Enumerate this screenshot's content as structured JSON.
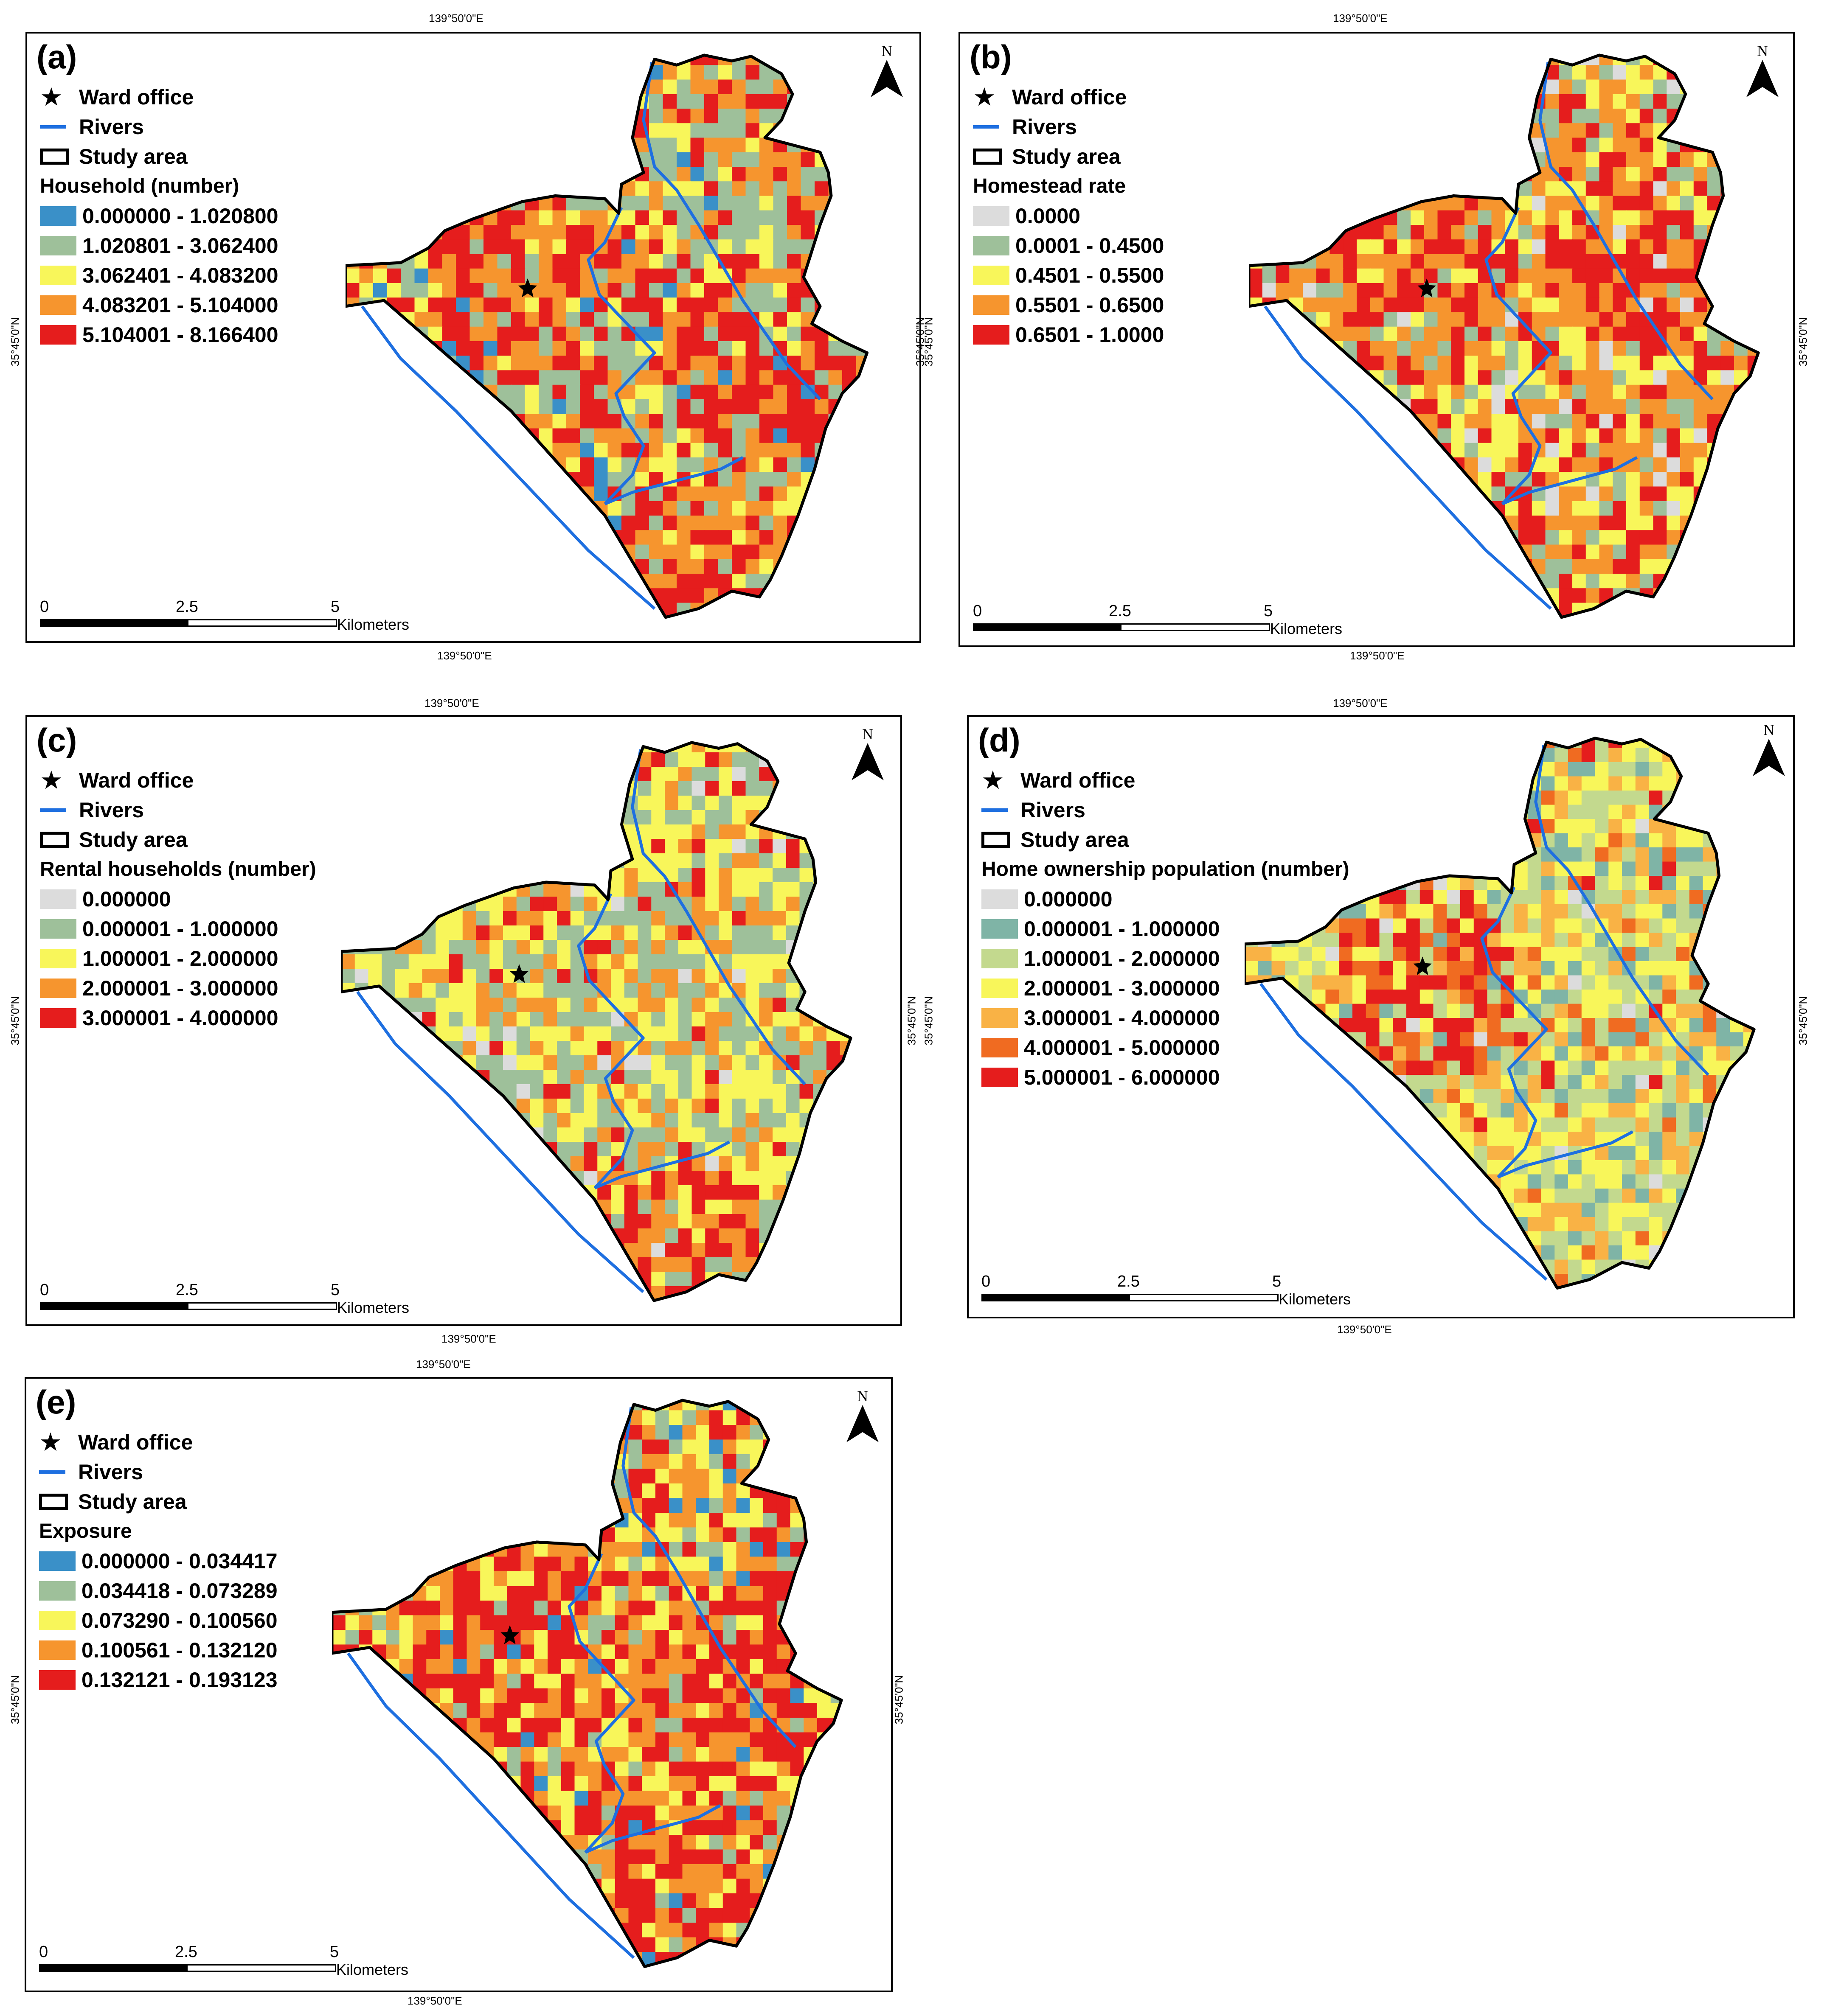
{
  "colors": {
    "river": "#1e6fe0",
    "outline": "#000000",
    "blue": "#3a90c8",
    "sage": "#9ec09a",
    "yellow": "#f8f65a",
    "orange": "#f6952e",
    "red": "#e51d1d",
    "gray": "#dcdcdc",
    "teal": "#7fb4a6",
    "lightgreen": "#c3d98e",
    "lightorange": "#f9b245",
    "darkorange": "#f06b21"
  },
  "common": {
    "coord_lon": "139°50'0\"E",
    "coord_lat": "35°45'0\"N",
    "north_letter": "N",
    "ward_office": "Ward office",
    "rivers": "Rivers",
    "study_area": "Study area",
    "scale_ticks": [
      "0",
      "2.5",
      "5"
    ],
    "scale_unit": "Kilometers"
  },
  "panels": [
    {
      "label": "(a)",
      "legend_title": "Household (number)",
      "classes": [
        {
          "range": "0.000000 - 1.020800",
          "color": "#3a90c8"
        },
        {
          "range": "1.020801 - 3.062400",
          "color": "#9ec09a"
        },
        {
          "range": "3.062401 - 4.083200",
          "color": "#f8f65a"
        },
        {
          "range": "4.083201 - 5.104000",
          "color": "#f6952e"
        },
        {
          "range": "5.104001 - 8.166400",
          "color": "#e51d1d"
        }
      ]
    },
    {
      "label": "(b)",
      "legend_title": "Homestead rate",
      "classes": [
        {
          "range": "0.0000",
          "color": "#dcdcdc"
        },
        {
          "range": "0.0001 - 0.4500",
          "color": "#9ec09a"
        },
        {
          "range": "0.4501 - 0.5500",
          "color": "#f8f65a"
        },
        {
          "range": "0.5501 - 0.6500",
          "color": "#f6952e"
        },
        {
          "range": "0.6501 - 1.0000",
          "color": "#e51d1d"
        }
      ]
    },
    {
      "label": "(c)",
      "legend_title": "Rental households (number)",
      "classes": [
        {
          "range": "0.000000",
          "color": "#dcdcdc"
        },
        {
          "range": "0.000001 - 1.000000",
          "color": "#9ec09a"
        },
        {
          "range": "1.000001 - 2.000000",
          "color": "#f8f65a"
        },
        {
          "range": "2.000001 - 3.000000",
          "color": "#f6952e"
        },
        {
          "range": "3.000001 - 4.000000",
          "color": "#e51d1d"
        }
      ]
    },
    {
      "label": "(d)",
      "legend_title": "Home ownership population (number)",
      "classes": [
        {
          "range": "0.000000",
          "color": "#dcdcdc"
        },
        {
          "range": "0.000001 - 1.000000",
          "color": "#7fb4a6"
        },
        {
          "range": "1.000001 - 2.000000",
          "color": "#c3d98e"
        },
        {
          "range": "2.000001 - 3.000000",
          "color": "#f8f65a"
        },
        {
          "range": "3.000001 - 4.000000",
          "color": "#f9b245"
        },
        {
          "range": "4.000001 - 5.000000",
          "color": "#f06b21"
        },
        {
          "range": "5.000001 - 6.000000",
          "color": "#e51d1d"
        }
      ]
    },
    {
      "label": "(e)",
      "legend_title": "Exposure",
      "classes": [
        {
          "range": "0.000000 - 0.034417",
          "color": "#3a90c8"
        },
        {
          "range": "0.034418 - 0.073289",
          "color": "#9ec09a"
        },
        {
          "range": "0.073290 - 0.100560",
          "color": "#f8f65a"
        },
        {
          "range": "0.100561 - 0.132120",
          "color": "#f6952e"
        },
        {
          "range": "0.132121 - 0.193123",
          "color": "#e51d1d"
        }
      ]
    }
  ]
}
